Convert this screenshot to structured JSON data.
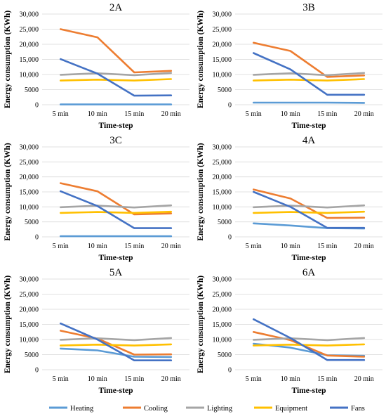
{
  "chart_data": [
    {
      "type": "line",
      "title": "2A",
      "xlabel": "Time-step",
      "ylabel": "Energy consumption (KWh)",
      "categories": [
        "5 min",
        "10 min",
        "15 min",
        "20 min"
      ],
      "ylim": [
        0,
        30000
      ],
      "yticks": [
        "0",
        "5000",
        "10,000",
        "15,000",
        "20,000",
        "25,000",
        "30,000"
      ],
      "grid": true,
      "series": [
        {
          "name": "Heating",
          "values": [
            100,
            100,
            100,
            100
          ]
        },
        {
          "name": "Cooling",
          "values": [
            25000,
            22300,
            10700,
            11200
          ]
        },
        {
          "name": "Lighting",
          "values": [
            9900,
            10400,
            9800,
            10500
          ]
        },
        {
          "name": "Equipment",
          "values": [
            8000,
            8300,
            8000,
            8500
          ]
        },
        {
          "name": "Fans",
          "values": [
            15100,
            10300,
            3000,
            3100
          ]
        }
      ]
    },
    {
      "type": "line",
      "title": "3B",
      "xlabel": "Time-step",
      "ylabel": "Energy consumption (KWh)",
      "categories": [
        "5 min",
        "10 min",
        "15 min",
        "20 min"
      ],
      "ylim": [
        0,
        30000
      ],
      "yticks": [
        "0",
        "5000",
        "10,000",
        "15,000",
        "20,000",
        "25,000",
        "30,000"
      ],
      "grid": true,
      "series": [
        {
          "name": "Heating",
          "values": [
            700,
            700,
            700,
            600
          ]
        },
        {
          "name": "Cooling",
          "values": [
            20500,
            17800,
            9200,
            9700
          ]
        },
        {
          "name": "Lighting",
          "values": [
            9900,
            10400,
            9800,
            10500
          ]
        },
        {
          "name": "Equipment",
          "values": [
            8000,
            8300,
            8000,
            8500
          ]
        },
        {
          "name": "Fans",
          "values": [
            17100,
            11700,
            3300,
            3300
          ]
        }
      ]
    },
    {
      "type": "line",
      "title": "3C",
      "xlabel": "Time-step",
      "ylabel": "Energy consumption (KWh)",
      "categories": [
        "5 min",
        "10 min",
        "15 min",
        "20 min"
      ],
      "ylim": [
        0,
        30000
      ],
      "yticks": [
        "0",
        "5000",
        "10,000",
        "15,000",
        "20,000",
        "25,000",
        "30,000"
      ],
      "grid": true,
      "series": [
        {
          "name": "Heating",
          "values": [
            200,
            200,
            200,
            200
          ]
        },
        {
          "name": "Cooling",
          "values": [
            17900,
            15200,
            7500,
            7800
          ]
        },
        {
          "name": "Lighting",
          "values": [
            9900,
            10400,
            9800,
            10500
          ]
        },
        {
          "name": "Equipment",
          "values": [
            8000,
            8300,
            8000,
            8400
          ]
        },
        {
          "name": "Fans",
          "values": [
            15200,
            10300,
            2900,
            2900
          ]
        }
      ]
    },
    {
      "type": "line",
      "title": "4A",
      "xlabel": "Time-step",
      "ylabel": "Energy consumption (KWh)",
      "categories": [
        "5 min",
        "10 min",
        "15 min",
        "20 min"
      ],
      "ylim": [
        0,
        30000
      ],
      "yticks": [
        "0",
        "5000",
        "10,000",
        "15,000",
        "20,000",
        "25,000",
        "30,000"
      ],
      "grid": true,
      "series": [
        {
          "name": "Heating",
          "values": [
            4500,
            3800,
            2900,
            2800
          ]
        },
        {
          "name": "Cooling",
          "values": [
            15800,
            12800,
            6300,
            6400
          ]
        },
        {
          "name": "Lighting",
          "values": [
            9900,
            10400,
            9800,
            10500
          ]
        },
        {
          "name": "Equipment",
          "values": [
            8000,
            8300,
            8000,
            8400
          ]
        },
        {
          "name": "Fans",
          "values": [
            15000,
            10000,
            3000,
            3000
          ]
        }
      ]
    },
    {
      "type": "line",
      "title": "5A",
      "xlabel": "Time-step",
      "ylabel": "Energy consumption (KWh)",
      "categories": [
        "5 min",
        "10 min",
        "15 min",
        "20 min"
      ],
      "ylim": [
        0,
        30000
      ],
      "yticks": [
        "0",
        "5000",
        "10,000",
        "15,000",
        "20,000",
        "25,000",
        "30,000"
      ],
      "grid": true,
      "series": [
        {
          "name": "Heating",
          "values": [
            7000,
            6400,
            4300,
            4200
          ]
        },
        {
          "name": "Cooling",
          "values": [
            12900,
            10300,
            5000,
            5100
          ]
        },
        {
          "name": "Lighting",
          "values": [
            9900,
            10400,
            9800,
            10500
          ]
        },
        {
          "name": "Equipment",
          "values": [
            8000,
            8300,
            8000,
            8400
          ]
        },
        {
          "name": "Fans",
          "values": [
            15300,
            10000,
            3100,
            3100
          ]
        }
      ]
    },
    {
      "type": "line",
      "title": "6A",
      "xlabel": "Time-step",
      "ylabel": "Energy consumption (KWh)",
      "categories": [
        "5 min",
        "10 min",
        "15 min",
        "20 min"
      ],
      "ylim": [
        0,
        30000
      ],
      "yticks": [
        "0",
        "5000",
        "10,000",
        "15,000",
        "20,000",
        "25,000",
        "30,000"
      ],
      "grid": true,
      "series": [
        {
          "name": "Heating",
          "values": [
            8600,
            7300,
            4800,
            4600
          ]
        },
        {
          "name": "Cooling",
          "values": [
            12500,
            9800,
            4700,
            4300
          ]
        },
        {
          "name": "Lighting",
          "values": [
            9900,
            10400,
            9800,
            10500
          ]
        },
        {
          "name": "Equipment",
          "values": [
            8000,
            8300,
            8000,
            8400
          ]
        },
        {
          "name": "Fans",
          "values": [
            16700,
            10500,
            3200,
            3200
          ]
        }
      ]
    }
  ],
  "legend": {
    "placement": "bottom",
    "items": [
      {
        "name": "Heating",
        "color": "#5b9bd5"
      },
      {
        "name": "Cooling",
        "color": "#ed7d31"
      },
      {
        "name": "Lighting",
        "color": "#a5a5a5"
      },
      {
        "name": "Equipment",
        "color": "#ffc000"
      },
      {
        "name": "Fans",
        "color": "#4472c4"
      }
    ]
  },
  "colors": {
    "Heating": "#5b9bd5",
    "Cooling": "#ed7d31",
    "Lighting": "#a5a5a5",
    "Equipment": "#ffc000",
    "Fans": "#4472c4",
    "grid": "#d9d9d9"
  }
}
